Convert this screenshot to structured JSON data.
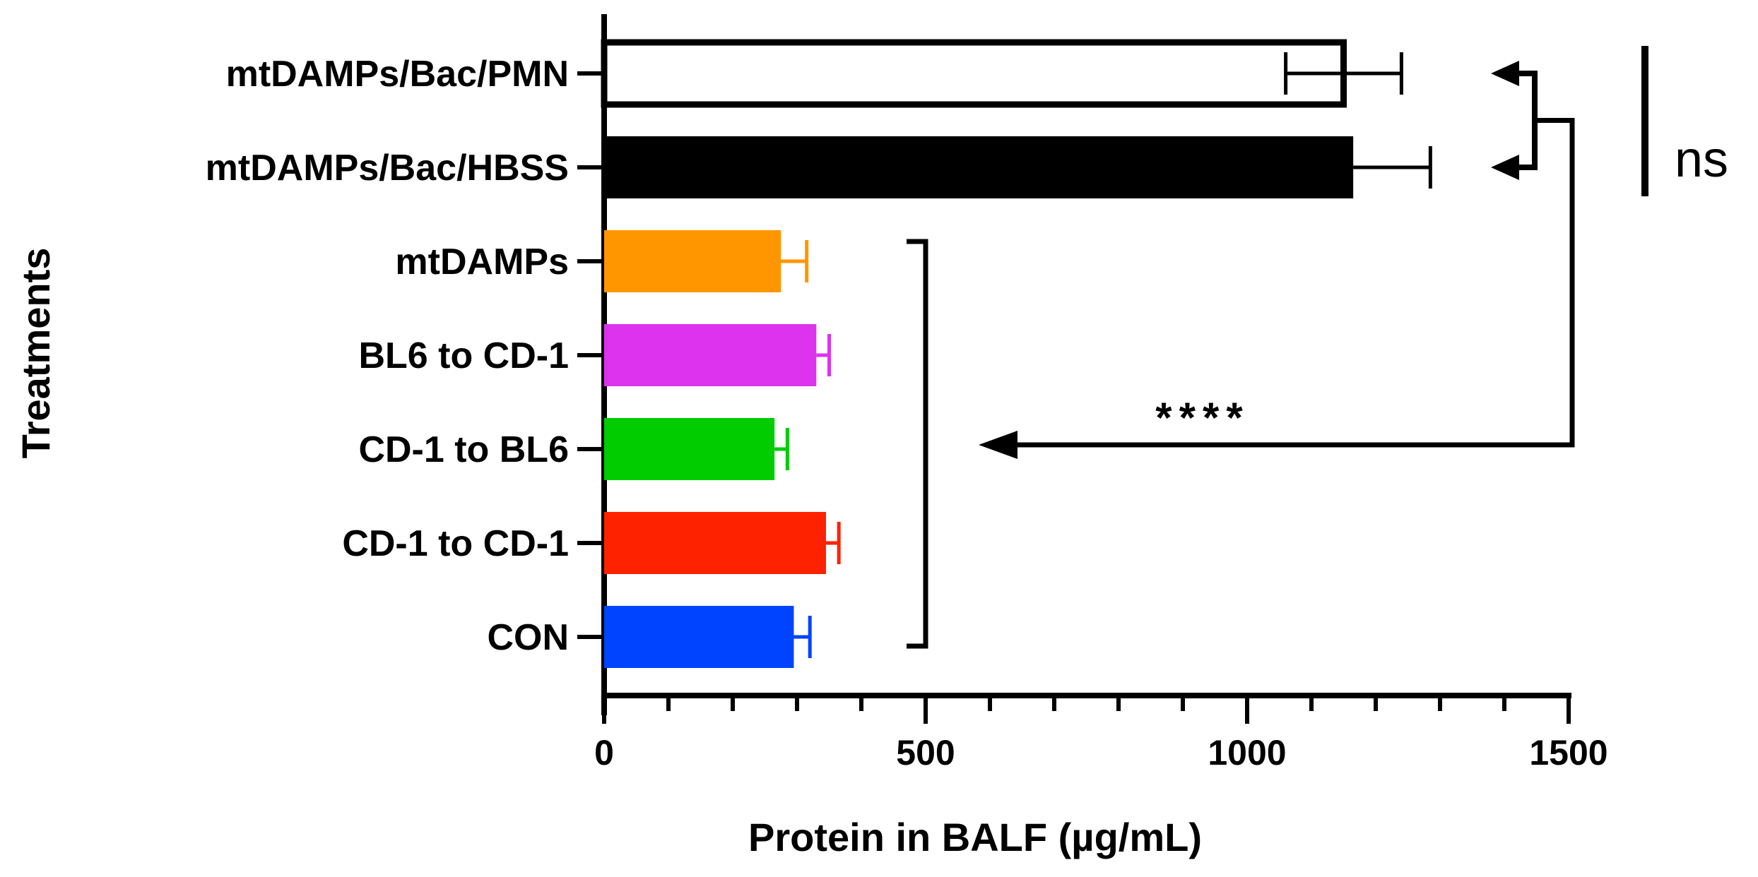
{
  "chart_data": {
    "type": "bar",
    "orientation": "horizontal",
    "categories": [
      "mtDAMPs/Bac/PMN",
      "mtDAMPs/Bac/HBSS",
      "mtDAMPs",
      "BL6 to CD-1",
      "CD-1 to BL6",
      "CD-1 to CD-1",
      "CON"
    ],
    "values": [
      1150,
      1165,
      275,
      330,
      265,
      345,
      295
    ],
    "errors": [
      90,
      120,
      40,
      20,
      20,
      20,
      25
    ],
    "error_bars_both_sides": [
      true,
      false,
      false,
      false,
      false,
      false,
      false
    ],
    "colors": [
      "#ffffff",
      "#000000",
      "#ff9600",
      "#dd33ee",
      "#00cc00",
      "#ff2200",
      "#0044ff"
    ],
    "xlabel": "Protein in BALF (µg/mL)",
    "ylabel": "Treatments",
    "xlim": [
      0,
      1500
    ],
    "xticks": [
      0,
      500,
      1000,
      1500
    ],
    "minor_tick_step": 100,
    "grid": false,
    "annotations": {
      "ns": "ns",
      "stars": "****"
    }
  }
}
